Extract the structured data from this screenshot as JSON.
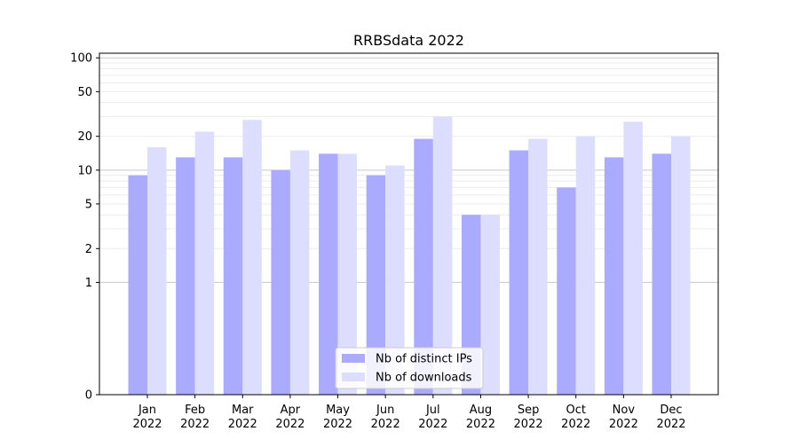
{
  "chart_data": {
    "type": "bar",
    "title": "RRBSdata 2022",
    "xlabel": "",
    "ylabel": "",
    "scale": "symlog",
    "ylim": [
      0,
      110
    ],
    "yticks": [
      0,
      1,
      2,
      5,
      10,
      20,
      50,
      100
    ],
    "grid": "horizontal",
    "legend_position": "lower-center",
    "categories": [
      "Jan\n2022",
      "Feb\n2022",
      "Mar\n2022",
      "Apr\n2022",
      "May\n2022",
      "Jun\n2022",
      "Jul\n2022",
      "Aug\n2022",
      "Sep\n2022",
      "Oct\n2022",
      "Nov\n2022",
      "Dec\n2022"
    ],
    "series": [
      {
        "name": "Nb of distinct IPs",
        "color": "#aaaaff",
        "values": [
          9,
          13,
          13,
          10,
          14,
          9,
          19,
          4,
          15,
          7,
          13,
          14
        ]
      },
      {
        "name": "Nb of downloads",
        "color": "#ddddff",
        "values": [
          16,
          22,
          28,
          15,
          14,
          11,
          30,
          4,
          19,
          20,
          27,
          20
        ]
      }
    ]
  }
}
